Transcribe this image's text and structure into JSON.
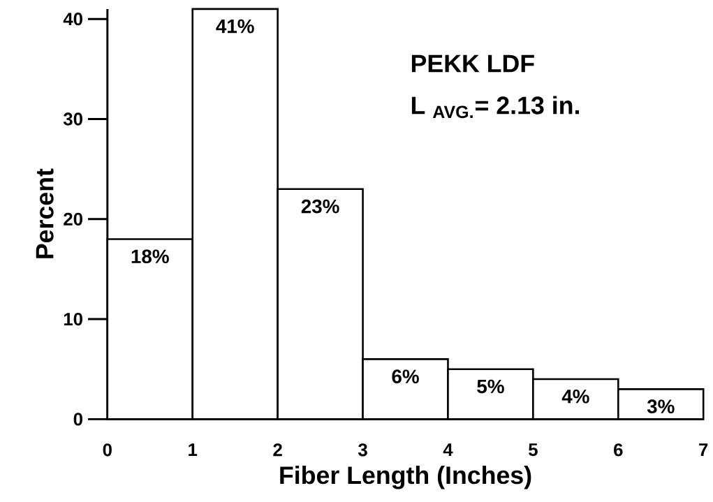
{
  "chart_data": {
    "type": "histogram",
    "xlabel": "Fiber Length (Inches)",
    "ylabel": "Percent",
    "bins": [
      0,
      1,
      2,
      3,
      4,
      5,
      6,
      7
    ],
    "values": [
      18,
      41,
      23,
      6,
      5,
      4,
      3
    ],
    "value_labels": [
      "18%",
      "41%",
      "23%",
      "6%",
      "5%",
      "4%",
      "3%"
    ],
    "color": "#ffffff",
    "xlim": [
      0,
      7
    ],
    "ylim": [
      0,
      41
    ],
    "xticks": [
      0,
      1,
      2,
      3,
      4,
      5,
      6,
      7
    ],
    "yticks": [
      0,
      10,
      20,
      30,
      40
    ],
    "grid": false,
    "annotations": [
      "PEKK LDF",
      "L $_{AVG.}$= 2.13 in."
    ]
  }
}
